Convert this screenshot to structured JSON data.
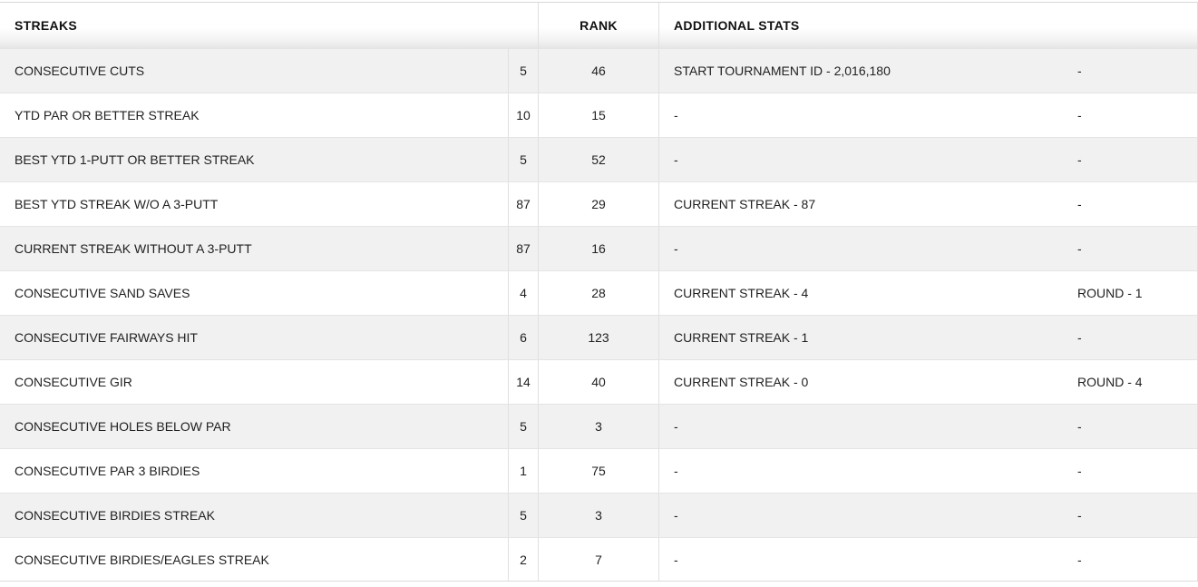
{
  "table": {
    "headers": {
      "streaks": "STREAKS",
      "rank": "RANK",
      "additional_stats": "ADDITIONAL STATS"
    },
    "rows": [
      {
        "name": "CONSECUTIVE CUTS",
        "value": "5",
        "rank": "46",
        "stat1": "START TOURNAMENT ID - 2,016,180",
        "stat2": "-"
      },
      {
        "name": "YTD PAR OR BETTER STREAK",
        "value": "10",
        "rank": "15",
        "stat1": "-",
        "stat2": "-"
      },
      {
        "name": "BEST YTD 1-PUTT OR BETTER STREAK",
        "value": "5",
        "rank": "52",
        "stat1": "-",
        "stat2": "-"
      },
      {
        "name": "BEST YTD STREAK W/O A 3-PUTT",
        "value": "87",
        "rank": "29",
        "stat1": "CURRENT STREAK - 87",
        "stat2": "-"
      },
      {
        "name": "CURRENT STREAK WITHOUT A 3-PUTT",
        "value": "87",
        "rank": "16",
        "stat1": "-",
        "stat2": "-"
      },
      {
        "name": "CONSECUTIVE SAND SAVES",
        "value": "4",
        "rank": "28",
        "stat1": "CURRENT STREAK - 4",
        "stat2": "ROUND - 1"
      },
      {
        "name": "CONSECUTIVE FAIRWAYS HIT",
        "value": "6",
        "rank": "123",
        "stat1": "CURRENT STREAK - 1",
        "stat2": "-"
      },
      {
        "name": "CONSECUTIVE GIR",
        "value": "14",
        "rank": "40",
        "stat1": "CURRENT STREAK - 0",
        "stat2": "ROUND - 4"
      },
      {
        "name": "CONSECUTIVE HOLES BELOW PAR",
        "value": "5",
        "rank": "3",
        "stat1": "-",
        "stat2": "-"
      },
      {
        "name": "CONSECUTIVE PAR 3 BIRDIES",
        "value": "1",
        "rank": "75",
        "stat1": "-",
        "stat2": "-"
      },
      {
        "name": "CONSECUTIVE BIRDIES STREAK",
        "value": "5",
        "rank": "3",
        "stat1": "-",
        "stat2": "-"
      },
      {
        "name": "CONSECUTIVE BIRDIES/EAGLES STREAK",
        "value": "2",
        "rank": "7",
        "stat1": "-",
        "stat2": "-"
      }
    ]
  },
  "colors": {
    "row_alt_background": "#f1f1f1",
    "row_background": "#ffffff",
    "divider": "#e0e0e0",
    "row_separator": "#e4e4e4",
    "top_rule": "#d8d8d8",
    "text": "#212121"
  }
}
